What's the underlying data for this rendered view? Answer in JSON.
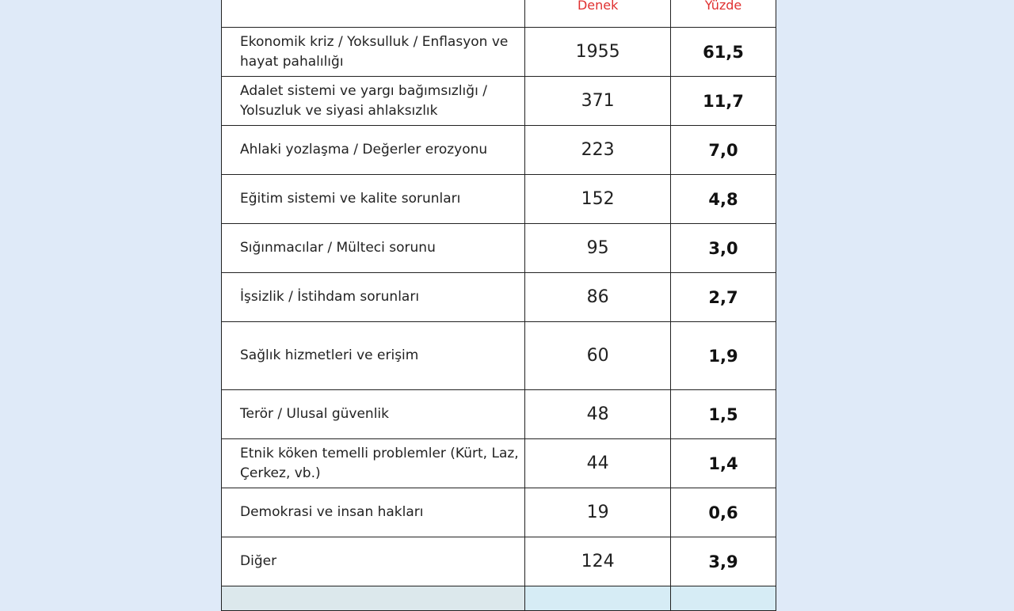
{
  "table": {
    "headers": [
      "",
      "Denek",
      "Yüzde"
    ],
    "rows": [
      {
        "label": "Ekonomik kriz / Yoksulluk / Enflasyon ve hayat pahalılığı",
        "count": "1955",
        "percent": "61,5"
      },
      {
        "label": "Adalet sistemi ve yargı bağımsızlığı / Yolsuzluk ve siyasi ahlaksızlık",
        "count": "371",
        "percent": "11,7"
      },
      {
        "label": "Ahlaki yozlaşma / Değerler erozyonu",
        "count": "223",
        "percent": "7,0"
      },
      {
        "label": "Eğitim sistemi ve kalite sorunları",
        "count": "152",
        "percent": "4,8"
      },
      {
        "label": "Sığınmacılar / Mülteci sorunu",
        "count": "95",
        "percent": "3,0"
      },
      {
        "label": "İşsizlik / İstihdam sorunları",
        "count": "86",
        "percent": "2,7"
      },
      {
        "label": "Sağlık hizmetleri ve erişim",
        "count": "60",
        "percent": "1,9"
      },
      {
        "label": "Terör / Ulusal güvenlik",
        "count": "48",
        "percent": "1,5"
      },
      {
        "label": "Etnik köken temelli problemler (Kürt, Laz, Çerkez, vb.)",
        "count": "44",
        "percent": "1,4"
      },
      {
        "label": "Demokrasi ve insan hakları",
        "count": "19",
        "percent": "0,6"
      },
      {
        "label": "Diğer",
        "count": "124",
        "percent": "3,9"
      }
    ]
  }
}
